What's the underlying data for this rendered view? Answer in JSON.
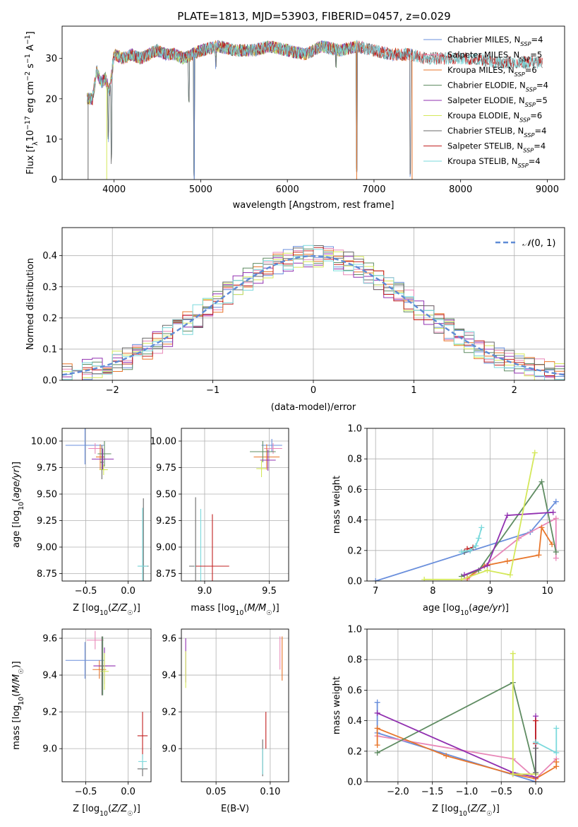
{
  "figure_title": "PLATE=1813, MJD=53903, FIBERID=0457, z=0.029",
  "palette": {
    "c0": "#6a8fdc",
    "c1": "#e887b8",
    "c2": "#e8762b",
    "c3": "#5f8c62",
    "c4": "#9130b0",
    "c5": "#d4e85a",
    "c6": "#6a6a6a",
    "c7": "#c22020",
    "c8": "#7ad9dc",
    "normal": "#5f8bd6"
  },
  "chart_data": [
    {
      "id": "spectrum",
      "type": "line",
      "title": "PLATE=1813, MJD=53903, FIBERID=0457, z=0.029",
      "xlabel": "wavelength [Angstrom, rest frame]",
      "ylabel": "Flux [f_λ 10^-17 erg cm^-2 s^-1 A^-1]",
      "xlim": [
        3400,
        9200
      ],
      "ylim": [
        0,
        38
      ],
      "xticks": [
        4000,
        5000,
        6000,
        7000,
        8000,
        9000
      ],
      "yticks": [
        0,
        10,
        20,
        30
      ],
      "grid": false,
      "legend_position": "top-right",
      "spectrum_envelope": {
        "x": [
          3690,
          3750,
          3800,
          3850,
          3900,
          3950,
          4000,
          4100,
          4200,
          4300,
          4400,
          4500,
          4600,
          4700,
          4800,
          4900,
          5000,
          5200,
          5400,
          5600,
          5800,
          6000,
          6200,
          6400,
          6600,
          6800,
          7000,
          7200,
          7400,
          7600,
          7800,
          8000,
          8200,
          8400,
          8600,
          8800,
          8900
        ],
        "y": [
          20,
          20,
          27,
          24,
          25,
          22,
          31,
          30,
          31,
          30,
          31,
          32,
          31,
          31,
          30,
          31,
          32,
          33,
          32,
          32,
          33,
          32,
          31,
          33,
          32,
          33,
          32,
          31,
          31,
          30,
          30,
          30,
          30,
          29,
          29,
          29,
          29
        ]
      },
      "series": [
        {
          "label": "Chabrier MILES, N",
          "sub": "SSP",
          "value": "=4",
          "color": "#6a8fdc",
          "x_end": 7450
        },
        {
          "label": "Salpeter MILES, N",
          "sub": "SSP",
          "value": "=5",
          "color": "#e887b8",
          "x_end": 7450
        },
        {
          "label": "Kroupa MILES, N",
          "sub": "SSP",
          "value": "=6",
          "color": "#e8762b",
          "x_end": 7450
        },
        {
          "label": "Chabrier ELODIE, N",
          "sub": "SSP",
          "value": "=4",
          "color": "#5f8c62",
          "x_end": 6800
        },
        {
          "label": "Salpeter ELODIE, N",
          "sub": "SSP",
          "value": "=5",
          "color": "#9130b0",
          "x_end": 6800
        },
        {
          "label": "Kroupa ELODIE, N",
          "sub": "SSP",
          "value": "=6",
          "color": "#d4e85a",
          "x_end": 6800
        },
        {
          "label": "Chabrier STELIB, N",
          "sub": "SSP",
          "value": "=4",
          "color": "#6a6a6a",
          "x_end": 8950
        },
        {
          "label": "Salpeter STELIB, N",
          "sub": "SSP",
          "value": "=4",
          "color": "#c22020",
          "x_end": 8950
        },
        {
          "label": "Kroupa STELIB, N",
          "sub": "SSP",
          "value": "=4",
          "color": "#7ad9dc",
          "x_end": 8950
        }
      ]
    },
    {
      "id": "residuals",
      "type": "step",
      "xlabel": "(data-model)/error",
      "ylabel": "Normed distribution",
      "xlim": [
        -2.5,
        2.5
      ],
      "ylim": [
        0,
        0.49
      ],
      "xticks": [
        -2,
        -1,
        0,
        1,
        2
      ],
      "yticks": [
        0.0,
        0.1,
        0.2,
        0.3,
        0.4
      ],
      "grid": true,
      "legend_position": "top-right",
      "legend": "N(0,1)",
      "normal_curve": {
        "mean": 0,
        "sigma": 1,
        "color": "#5f8bd6"
      },
      "bins": {
        "start": -2.5,
        "width": 0.1,
        "count": 50
      },
      "series_colors": [
        "#6a8fdc",
        "#e887b8",
        "#e8762b",
        "#5f8c62",
        "#9130b0",
        "#d4e85a",
        "#6a6a6a",
        "#c22020",
        "#7ad9dc"
      ]
    },
    {
      "id": "age_vs_z",
      "type": "errorbar",
      "xlabel": "Z [log10(Z/Z☉)]",
      "ylabel": "age [log10(age/yr)]",
      "xlim": [
        -0.78,
        0.27
      ],
      "ylim": [
        8.68,
        10.12
      ],
      "xticks": [
        -0.5,
        0.0
      ],
      "yticks": [
        8.75,
        9.0,
        9.25,
        9.5,
        9.75,
        10.0
      ],
      "grid": true,
      "points": [
        {
          "x": -0.51,
          "xerr": 0.23,
          "y": 9.96,
          "yerr": 0.18,
          "color": "#6a8fdc"
        },
        {
          "x": -0.39,
          "xerr": 0.08,
          "y": 9.93,
          "yerr": 0.05,
          "color": "#e887b8"
        },
        {
          "x": -0.33,
          "xerr": 0.05,
          "y": 9.85,
          "yerr": 0.12,
          "color": "#e8762b"
        },
        {
          "x": -0.28,
          "xerr": 0.08,
          "y": 9.88,
          "yerr": 0.12,
          "color": "#5f8c62"
        },
        {
          "x": -0.3,
          "xerr": 0.13,
          "y": 9.83,
          "yerr": 0.1,
          "color": "#9130b0"
        },
        {
          "x": -0.29,
          "xerr": 0.05,
          "y": 9.73,
          "yerr": 0.05,
          "color": "#d4e85a"
        },
        {
          "x": -0.31,
          "xerr": 0.02,
          "y": 9.8,
          "yerr": 0.16,
          "color": "#6a6a6a"
        },
        {
          "x": 0.18,
          "xerr": 0.06,
          "y": 8.82,
          "yerr": 0.64,
          "color": "#6a6a6a"
        },
        {
          "x": 0.17,
          "xerr": 0.06,
          "y": 8.82,
          "yerr": 0.55,
          "color": "#7ad9dc"
        }
      ]
    },
    {
      "id": "age_vs_mass",
      "type": "errorbar",
      "xlabel": "mass [log10(M/M☉)]",
      "ylabel": "",
      "xlim": [
        8.82,
        9.65
      ],
      "ylim": [
        8.68,
        10.12
      ],
      "xticks": [
        9.0,
        9.5
      ],
      "yticks": [
        8.75,
        9.0,
        9.25,
        9.5,
        9.75,
        10.0
      ],
      "grid": true,
      "points": [
        {
          "x": 9.52,
          "xerr": 0.08,
          "y": 9.96,
          "yerr": 0.06,
          "color": "#6a8fdc"
        },
        {
          "x": 9.53,
          "xerr": 0.07,
          "y": 9.93,
          "yerr": 0.05,
          "color": "#e887b8"
        },
        {
          "x": 9.48,
          "xerr": 0.1,
          "y": 9.85,
          "yerr": 0.12,
          "color": "#e8762b"
        },
        {
          "x": 9.45,
          "xerr": 0.1,
          "y": 9.9,
          "yerr": 0.1,
          "color": "#5f8c62"
        },
        {
          "x": 9.49,
          "xerr": 0.06,
          "y": 9.82,
          "yerr": 0.1,
          "color": "#9130b0"
        },
        {
          "x": 9.44,
          "xerr": 0.04,
          "y": 9.74,
          "yerr": 0.08,
          "color": "#d4e85a"
        },
        {
          "x": 8.93,
          "xerr": 0.05,
          "y": 8.82,
          "yerr": 0.65,
          "color": "#6a6a6a"
        },
        {
          "x": 8.97,
          "xerr": 0.05,
          "y": 8.82,
          "yerr": 0.54,
          "color": "#7ad9dc"
        },
        {
          "x": 9.06,
          "xerr": 0.13,
          "y": 8.82,
          "yerr": 0.49,
          "color": "#c22020"
        }
      ]
    },
    {
      "id": "mass_weight_vs_age",
      "type": "line",
      "xlabel": "age [log10(age/yr)]",
      "ylabel": "mass weight",
      "xlim": [
        6.85,
        10.3
      ],
      "ylim": [
        0,
        1.0
      ],
      "xticks": [
        7,
        8,
        9,
        10
      ],
      "yticks": [
        0.0,
        0.2,
        0.4,
        0.6,
        0.8,
        1.0
      ],
      "grid": true,
      "series": [
        {
          "color": "#6a8fdc",
          "x": [
            7.0,
            9.7,
            10.15
          ],
          "y": [
            0.0,
            0.32,
            0.52
          ]
        },
        {
          "color": "#e887b8",
          "x": [
            8.6,
            9.5,
            10.15,
            10.15
          ],
          "y": [
            0.01,
            0.28,
            0.41,
            0.15
          ]
        },
        {
          "color": "#e8762b",
          "x": [
            8.6,
            8.9,
            9.3,
            9.85,
            9.9,
            10.08
          ],
          "y": [
            0.02,
            0.1,
            0.13,
            0.17,
            0.35,
            0.24
          ]
        },
        {
          "color": "#5f8c62",
          "x": [
            8.5,
            8.8,
            9.9,
            10.15
          ],
          "y": [
            0.03,
            0.07,
            0.65,
            0.19
          ]
        },
        {
          "color": "#9130b0",
          "x": [
            8.55,
            8.95,
            9.3,
            10.1
          ],
          "y": [
            0.04,
            0.1,
            0.43,
            0.45
          ]
        },
        {
          "color": "#d4e85a",
          "x": [
            7.85,
            8.5,
            8.95,
            9.35,
            9.78
          ],
          "y": [
            0.01,
            0.01,
            0.07,
            0.04,
            0.84
          ]
        },
        {
          "color": "#6a6a6a",
          "x": [
            8.55,
            8.65
          ],
          "y": [
            0.19,
            0.2
          ]
        },
        {
          "color": "#c22020",
          "x": [
            8.6,
            8.7
          ],
          "y": [
            0.21,
            0.22
          ]
        },
        {
          "color": "#7ad9dc",
          "x": [
            8.5,
            8.65,
            8.75,
            8.8,
            8.85
          ],
          "y": [
            0.19,
            0.2,
            0.23,
            0.28,
            0.35
          ]
        }
      ]
    },
    {
      "id": "mass_vs_z",
      "type": "errorbar",
      "xlabel": "Z [log10(Z/Z☉)]",
      "ylabel": "mass [log10(M/M☉)]",
      "xlim": [
        -0.78,
        0.27
      ],
      "ylim": [
        8.82,
        9.65
      ],
      "xticks": [
        -0.5,
        0.0
      ],
      "yticks": [
        9.0,
        9.2,
        9.4,
        9.6
      ],
      "grid": true,
      "points": [
        {
          "x": -0.51,
          "xerr": 0.23,
          "y": 9.48,
          "yerr": 0.1,
          "color": "#6a8fdc"
        },
        {
          "x": -0.39,
          "xerr": 0.1,
          "y": 9.59,
          "yerr": 0.05,
          "color": "#e887b8"
        },
        {
          "x": -0.34,
          "xerr": 0.08,
          "y": 9.43,
          "yerr": 0.05,
          "color": "#e8762b"
        },
        {
          "x": -0.3,
          "xerr": 0.05,
          "y": 9.45,
          "yerr": 0.16,
          "color": "#5f8c62"
        },
        {
          "x": -0.28,
          "xerr": 0.13,
          "y": 9.45,
          "yerr": 0.1,
          "color": "#9130b0"
        },
        {
          "x": -0.28,
          "xerr": 0.05,
          "y": 9.42,
          "yerr": 0.1,
          "color": "#d4e85a"
        },
        {
          "x": -0.31,
          "xerr": 0.02,
          "y": 9.45,
          "yerr": 0.16,
          "color": "#6a6a6a"
        },
        {
          "x": 0.17,
          "xerr": 0.06,
          "y": 9.07,
          "yerr": 0.13,
          "color": "#c22020"
        },
        {
          "x": 0.17,
          "xerr": 0.06,
          "y": 8.89,
          "yerr": 0.04,
          "color": "#6a6a6a"
        },
        {
          "x": 0.17,
          "xerr": 0.05,
          "y": 8.93,
          "yerr": 0.04,
          "color": "#7ad9dc"
        }
      ]
    },
    {
      "id": "mass_vs_ebv",
      "type": "errorbar",
      "xlabel": "E(B-V)",
      "ylabel": "",
      "xlim": [
        0.018,
        0.117
      ],
      "ylim": [
        8.82,
        9.65
      ],
      "xticks": [
        0.05,
        0.1
      ],
      "yticks": [
        9.0,
        9.2,
        9.4,
        9.6
      ],
      "grid": true,
      "points": [
        {
          "x": 0.022,
          "xerr": 0,
          "y": 9.48,
          "yerr": 0.12,
          "color": "#9130b0"
        },
        {
          "x": 0.022,
          "xerr": 0,
          "y": 9.43,
          "yerr": 0.1,
          "color": "#d4e85a"
        },
        {
          "x": 0.093,
          "xerr": 0,
          "y": 8.95,
          "yerr": 0.1,
          "color": "#6a6a6a"
        },
        {
          "x": 0.093,
          "xerr": 0,
          "y": 8.93,
          "yerr": 0.07,
          "color": "#7ad9dc"
        },
        {
          "x": 0.096,
          "xerr": 0,
          "y": 9.1,
          "yerr": 0.1,
          "color": "#c22020"
        },
        {
          "x": 0.109,
          "xerr": 0,
          "y": 9.52,
          "yerr": 0.09,
          "color": "#e887b8"
        },
        {
          "x": 0.111,
          "xerr": 0,
          "y": 9.49,
          "yerr": 0.12,
          "color": "#e8762b"
        }
      ]
    },
    {
      "id": "mass_weight_vs_z",
      "type": "line",
      "xlabel": "Z [log10(Z/Z☉)]",
      "ylabel": "mass weight",
      "xlim": [
        -2.45,
        0.42
      ],
      "ylim": [
        0,
        1.0
      ],
      "xticks": [
        -2.0,
        -1.5,
        -1.0,
        -0.5,
        0.0
      ],
      "yticks": [
        0.0,
        0.2,
        0.4,
        0.6,
        0.8,
        1.0
      ],
      "grid": true,
      "series": [
        {
          "color": "#6a8fdc",
          "x": [
            -2.3,
            -2.3,
            -0.0
          ],
          "y": [
            0.52,
            0.32,
            0.0
          ]
        },
        {
          "color": "#e887b8",
          "x": [
            -2.3,
            -0.33,
            0.0,
            0.3
          ],
          "y": [
            0.3,
            0.15,
            0.02,
            0.15
          ]
        },
        {
          "color": "#e8762b",
          "x": [
            -2.3,
            -2.3,
            -1.3,
            -0.33,
            0.0,
            0.3,
            0.3
          ],
          "y": [
            0.24,
            0.35,
            0.17,
            0.05,
            0.02,
            0.1,
            0.13
          ]
        },
        {
          "color": "#5f8c62",
          "x": [
            -2.3,
            -0.33,
            0.0
          ],
          "y": [
            0.19,
            0.65,
            0.05
          ]
        },
        {
          "color": "#9130b0",
          "x": [
            -2.3,
            -0.33,
            0.0,
            0.0
          ],
          "y": [
            0.45,
            0.06,
            0.03,
            0.43
          ]
        },
        {
          "color": "#d4e85a",
          "x": [
            -0.33,
            -0.33,
            0.0
          ],
          "y": [
            0.84,
            0.05,
            0.05
          ]
        },
        {
          "color": "#6a6a6a",
          "x": [
            0.0,
            0.0
          ],
          "y": [
            0.06,
            0.22
          ]
        },
        {
          "color": "#c22020",
          "x": [
            0.0,
            0.0
          ],
          "y": [
            0.25,
            0.4
          ]
        },
        {
          "color": "#7ad9dc",
          "x": [
            0.0,
            0.3,
            0.3
          ],
          "y": [
            0.26,
            0.19,
            0.35
          ]
        }
      ]
    }
  ]
}
